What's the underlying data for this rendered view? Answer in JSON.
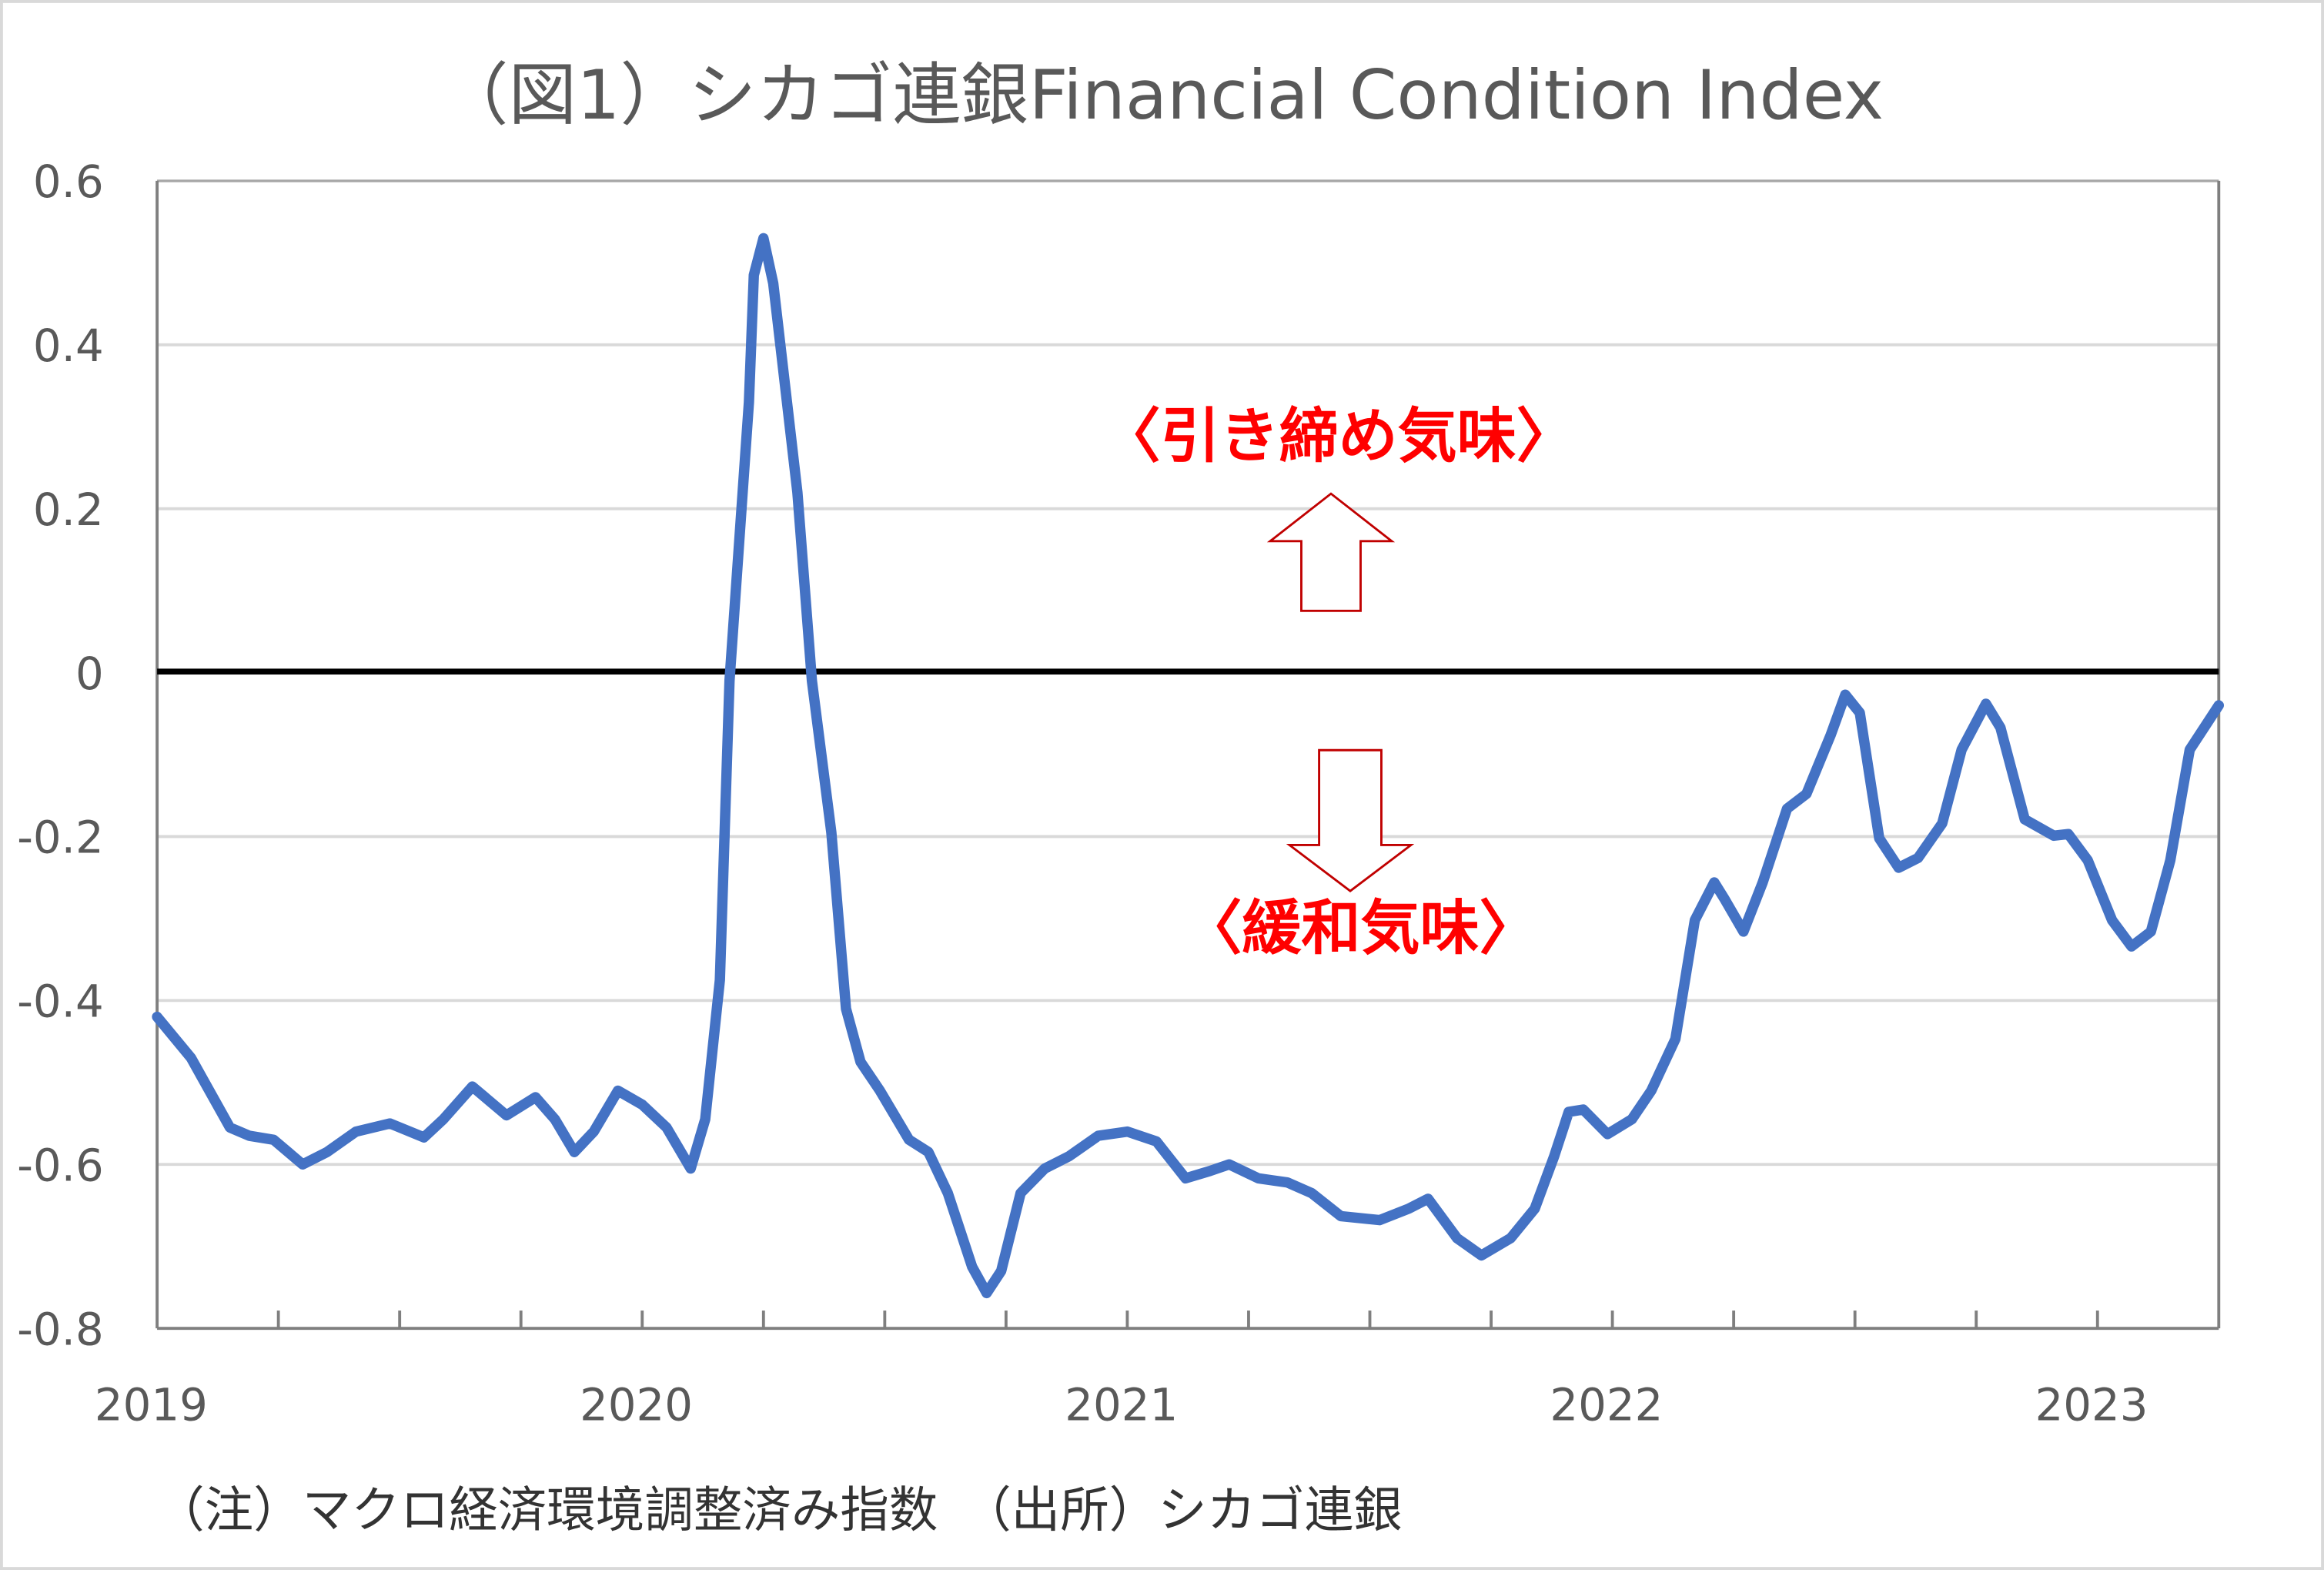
{
  "chart_data": {
    "type": "line",
    "title": "（図1）シカゴ連銀Financial Condition Index",
    "xlabel": "",
    "ylabel": "",
    "xlim": [
      2019,
      2023.25
    ],
    "ylim": [
      -0.8,
      0.6
    ],
    "x_tick_labels": [
      "2019",
      "2020",
      "2021",
      "2022",
      "2023"
    ],
    "y_tick_labels": [
      "0.6",
      "0.4",
      "0.2",
      "0",
      "-0.2",
      "-0.4",
      "-0.6",
      "-0.8"
    ],
    "grid": true,
    "legend": "none",
    "series": [
      {
        "color": "#4472c4",
        "points": [
          [
            2019.0,
            -0.42
          ],
          [
            2019.07,
            -0.47
          ],
          [
            2019.15,
            -0.555
          ],
          [
            2019.19,
            -0.565
          ],
          [
            2019.24,
            -0.57
          ],
          [
            2019.3,
            -0.6
          ],
          [
            2019.35,
            -0.585
          ],
          [
            2019.41,
            -0.56
          ],
          [
            2019.48,
            -0.55
          ],
          [
            2019.55,
            -0.567
          ],
          [
            2019.59,
            -0.545
          ],
          [
            2019.65,
            -0.505
          ],
          [
            2019.72,
            -0.54
          ],
          [
            2019.78,
            -0.518
          ],
          [
            2019.82,
            -0.545
          ],
          [
            2019.86,
            -0.585
          ],
          [
            2019.9,
            -0.56
          ],
          [
            2019.95,
            -0.51
          ],
          [
            2020.0,
            -0.527
          ],
          [
            2020.05,
            -0.555
          ],
          [
            2020.1,
            -0.605
          ],
          [
            2020.13,
            -0.545
          ],
          [
            2020.16,
            -0.375
          ],
          [
            2020.18,
            -0.01
          ],
          [
            2020.22,
            0.33
          ],
          [
            2020.23,
            0.485
          ],
          [
            2020.25,
            0.53
          ],
          [
            2020.27,
            0.475
          ],
          [
            2020.32,
            0.22
          ],
          [
            2020.35,
            -0.01
          ],
          [
            2020.39,
            -0.195
          ],
          [
            2020.42,
            -0.41
          ],
          [
            2020.45,
            -0.475
          ],
          [
            2020.49,
            -0.51
          ],
          [
            2020.55,
            -0.57
          ],
          [
            2020.59,
            -0.585
          ],
          [
            2020.63,
            -0.635
          ],
          [
            2020.68,
            -0.725
          ],
          [
            2020.71,
            -0.757
          ],
          [
            2020.74,
            -0.73
          ],
          [
            2020.78,
            -0.635
          ],
          [
            2020.83,
            -0.605
          ],
          [
            2020.88,
            -0.59
          ],
          [
            2020.94,
            -0.565
          ],
          [
            2021.0,
            -0.56
          ],
          [
            2021.06,
            -0.572
          ],
          [
            2021.12,
            -0.617
          ],
          [
            2021.17,
            -0.608
          ],
          [
            2021.21,
            -0.6
          ],
          [
            2021.27,
            -0.617
          ],
          [
            2021.33,
            -0.622
          ],
          [
            2021.38,
            -0.635
          ],
          [
            2021.44,
            -0.663
          ],
          [
            2021.52,
            -0.668
          ],
          [
            2021.58,
            -0.654
          ],
          [
            2021.62,
            -0.642
          ],
          [
            2021.68,
            -0.69
          ],
          [
            2021.73,
            -0.711
          ],
          [
            2021.79,
            -0.69
          ],
          [
            2021.84,
            -0.654
          ],
          [
            2021.88,
            -0.59
          ],
          [
            2021.91,
            -0.536
          ],
          [
            2021.94,
            -0.533
          ],
          [
            2021.99,
            -0.563
          ],
          [
            2022.04,
            -0.545
          ],
          [
            2022.08,
            -0.51
          ],
          [
            2022.13,
            -0.447
          ],
          [
            2022.17,
            -0.302
          ],
          [
            2022.21,
            -0.256
          ],
          [
            2022.23,
            -0.275
          ],
          [
            2022.27,
            -0.316
          ],
          [
            2022.31,
            -0.256
          ],
          [
            2022.36,
            -0.166
          ],
          [
            2022.4,
            -0.148
          ],
          [
            2022.45,
            -0.076
          ],
          [
            2022.48,
            -0.027
          ],
          [
            2022.51,
            -0.049
          ],
          [
            2022.55,
            -0.202
          ],
          [
            2022.59,
            -0.238
          ],
          [
            2022.63,
            -0.226
          ],
          [
            2022.68,
            -0.184
          ],
          [
            2022.72,
            -0.094
          ],
          [
            2022.77,
            -0.038
          ],
          [
            2022.8,
            -0.067
          ],
          [
            2022.85,
            -0.179
          ],
          [
            2022.91,
            -0.199
          ],
          [
            2022.94,
            -0.197
          ],
          [
            2022.98,
            -0.229
          ],
          [
            2023.03,
            -0.302
          ],
          [
            2023.07,
            -0.334
          ],
          [
            2023.11,
            -0.316
          ],
          [
            2023.15,
            -0.229
          ],
          [
            2023.19,
            -0.094
          ],
          [
            2023.25,
            -0.04
          ]
        ]
      }
    ],
    "zero_line_color": "#000000",
    "annotations": {
      "tightening": "〈引き締め気味〉",
      "easing": "〈緩和気味〉",
      "color": "#ff0000",
      "up_arrow": "arrow-up-outline",
      "down_arrow": "arrow-down-outline"
    },
    "footnote": "（注）マクロ経済環境調整済み指数　（出所）シカゴ連銀"
  }
}
